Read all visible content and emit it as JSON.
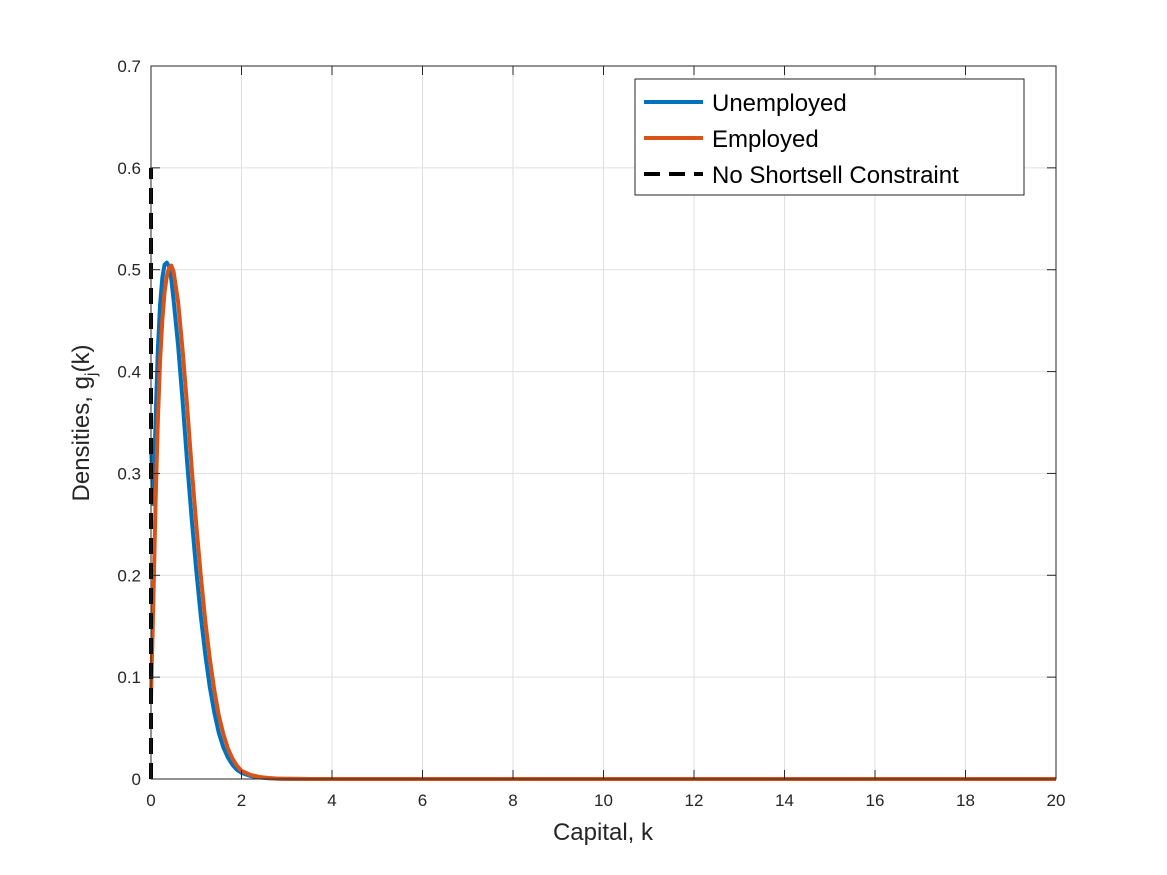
{
  "chart_data": {
    "type": "line",
    "title": "",
    "xlabel": "Capital, k",
    "ylabel_main": "Densities, g",
    "ylabel_sub": "j",
    "ylabel_tail": "(k)",
    "xlim": [
      0,
      20
    ],
    "ylim": [
      0,
      0.7
    ],
    "xticks": [
      0,
      2,
      4,
      6,
      8,
      10,
      12,
      14,
      16,
      18,
      20
    ],
    "yticks": [
      0,
      0.1,
      0.2,
      0.3,
      0.4,
      0.5,
      0.6,
      0.7
    ],
    "xtick_labels": [
      "0",
      "2",
      "4",
      "6",
      "8",
      "10",
      "12",
      "14",
      "16",
      "18",
      "20"
    ],
    "ytick_labels": [
      "0",
      "0.1",
      "0.2",
      "0.3",
      "0.4",
      "0.5",
      "0.6",
      "0.7"
    ],
    "grid": true,
    "legend_position": "top-right",
    "series": [
      {
        "name": "Unemployed",
        "color": "#0072BD",
        "style": "solid",
        "x": [
          0,
          0.05,
          0.1,
          0.15,
          0.2,
          0.25,
          0.3,
          0.35,
          0.4,
          0.45,
          0.5,
          0.6,
          0.7,
          0.8,
          0.9,
          1.0,
          1.1,
          1.2,
          1.3,
          1.4,
          1.5,
          1.6,
          1.7,
          1.8,
          1.9,
          2.0,
          2.2,
          2.4,
          2.6,
          2.8,
          3.0,
          3.5,
          4,
          6,
          8,
          10,
          12,
          14,
          16,
          18,
          20
        ],
        "y": [
          0.33,
          0.27,
          0.35,
          0.42,
          0.465,
          0.492,
          0.505,
          0.507,
          0.503,
          0.49,
          0.47,
          0.425,
          0.37,
          0.31,
          0.255,
          0.205,
          0.16,
          0.122,
          0.09,
          0.065,
          0.045,
          0.031,
          0.021,
          0.014,
          0.009,
          0.006,
          0.003,
          0.0015,
          0.0007,
          0.0003,
          0.0001,
          0,
          0,
          0,
          0,
          0,
          0,
          0,
          0,
          0,
          0
        ]
      },
      {
        "name": "Employed",
        "color": "#D95319",
        "style": "solid",
        "x": [
          0,
          0.05,
          0.1,
          0.15,
          0.2,
          0.25,
          0.3,
          0.35,
          0.4,
          0.45,
          0.5,
          0.6,
          0.7,
          0.8,
          0.9,
          1.0,
          1.1,
          1.2,
          1.3,
          1.4,
          1.5,
          1.6,
          1.7,
          1.8,
          1.9,
          2.0,
          2.2,
          2.4,
          2.6,
          2.8,
          3.0,
          3.5,
          4,
          6,
          8,
          10,
          12,
          14,
          16,
          18,
          20
        ],
        "y": [
          0.08,
          0.17,
          0.27,
          0.35,
          0.41,
          0.45,
          0.478,
          0.494,
          0.502,
          0.504,
          0.498,
          0.468,
          0.42,
          0.365,
          0.305,
          0.25,
          0.2,
          0.155,
          0.118,
          0.087,
          0.062,
          0.044,
          0.03,
          0.02,
          0.013,
          0.008,
          0.004,
          0.002,
          0.001,
          0.0004,
          0.0002,
          0,
          0,
          0,
          0,
          0,
          0,
          0,
          0,
          0,
          0
        ]
      },
      {
        "name": "No Shortsell Constraint",
        "color": "#000000",
        "style": "dashed",
        "x": [
          0,
          0
        ],
        "y": [
          0,
          0.6
        ]
      }
    ]
  }
}
